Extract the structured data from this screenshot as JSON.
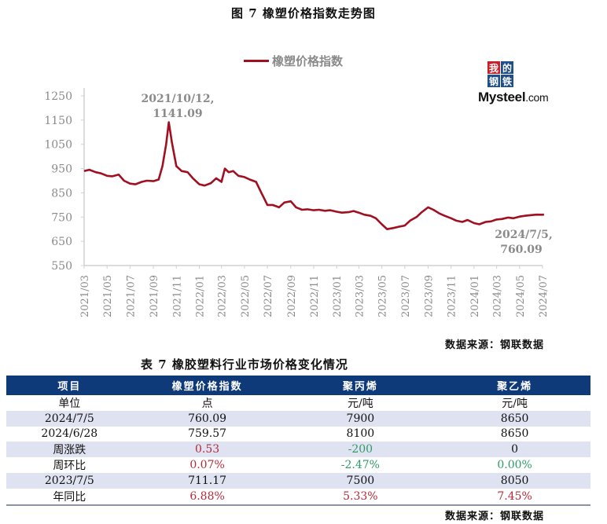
{
  "figure": {
    "title": "图 7   橡塑价格指数走势图",
    "legend_label": "橡塑价格指数",
    "logo": {
      "cells": [
        "我",
        "的",
        "钢",
        "铁"
      ],
      "text_big": "Mysteel",
      "text_small": ".com"
    },
    "source": "数据来源：钢联数据"
  },
  "chart_data": {
    "type": "line",
    "title": "橡塑价格指数走势图",
    "xlabel": "",
    "ylabel": "",
    "ylim": [
      550,
      1250
    ],
    "yticks": [
      1250,
      1150,
      1050,
      950,
      850,
      750,
      650,
      550
    ],
    "xticks": [
      "2021/03",
      "2021/05",
      "2021/07",
      "2021/09",
      "2021/11",
      "2022/01",
      "2022/03",
      "2022/05",
      "2022/07",
      "2022/09",
      "2022/11",
      "2023/01",
      "2023/03",
      "2023/05",
      "2023/07",
      "2023/09",
      "2023/11",
      "2024/01",
      "2024/03",
      "2024/05",
      "2024/07"
    ],
    "grid": false,
    "legend_position": "top",
    "series": [
      {
        "name": "橡塑价格指数",
        "color": "#a01020",
        "x": [
          "2021/03/01",
          "2021/03/15",
          "2021/04/01",
          "2021/04/15",
          "2021/05/01",
          "2021/05/15",
          "2021/06/01",
          "2021/06/15",
          "2021/07/01",
          "2021/07/15",
          "2021/08/01",
          "2021/08/15",
          "2021/09/01",
          "2021/09/15",
          "2021/09/25",
          "2021/10/05",
          "2021/10/12",
          "2021/10/20",
          "2021/11/01",
          "2021/11/15",
          "2021/12/01",
          "2021/12/15",
          "2022/01/01",
          "2022/01/15",
          "2022/02/01",
          "2022/02/15",
          "2022/03/01",
          "2022/03/10",
          "2022/03/20",
          "2022/04/01",
          "2022/04/15",
          "2022/05/01",
          "2022/05/15",
          "2022/06/01",
          "2022/06/15",
          "2022/07/01",
          "2022/07/15",
          "2022/08/01",
          "2022/08/15",
          "2022/09/01",
          "2022/09/15",
          "2022/10/01",
          "2022/10/15",
          "2022/11/01",
          "2022/11/15",
          "2022/12/01",
          "2022/12/15",
          "2023/01/01",
          "2023/01/15",
          "2023/02/01",
          "2023/02/15",
          "2023/03/01",
          "2023/03/15",
          "2023/04/01",
          "2023/04/15",
          "2023/05/01",
          "2023/05/15",
          "2023/06/01",
          "2023/06/15",
          "2023/07/01",
          "2023/07/15",
          "2023/08/01",
          "2023/08/15",
          "2023/09/01",
          "2023/09/15",
          "2023/10/01",
          "2023/10/15",
          "2023/11/01",
          "2023/11/15",
          "2023/12/01",
          "2023/12/15",
          "2024/01/01",
          "2024/01/15",
          "2024/02/01",
          "2024/02/15",
          "2024/03/01",
          "2024/03/15",
          "2024/04/01",
          "2024/04/15",
          "2024/05/01",
          "2024/05/15",
          "2024/06/01",
          "2024/06/15",
          "2024/06/28",
          "2024/07/05"
        ],
        "values": [
          940,
          945,
          935,
          930,
          920,
          918,
          925,
          900,
          888,
          885,
          895,
          900,
          898,
          905,
          960,
          1050,
          1141.09,
          1060,
          960,
          940,
          935,
          910,
          885,
          880,
          890,
          910,
          895,
          950,
          935,
          940,
          920,
          915,
          905,
          895,
          850,
          800,
          800,
          790,
          810,
          815,
          790,
          780,
          782,
          778,
          780,
          776,
          778,
          772,
          768,
          770,
          775,
          768,
          760,
          755,
          745,
          720,
          700,
          705,
          710,
          715,
          735,
          750,
          770,
          790,
          780,
          765,
          755,
          745,
          735,
          730,
          738,
          725,
          720,
          730,
          732,
          740,
          742,
          748,
          745,
          752,
          755,
          758,
          760,
          759.57,
          760.09
        ]
      }
    ],
    "annotations": [
      {
        "text": "2021/10/12,\n1141.09",
        "x": "2021/10/12",
        "y": 1141.09
      },
      {
        "text": "2024/7/5,\n760.09",
        "x": "2024/07/05",
        "y": 760.09
      }
    ]
  },
  "annotations": {
    "peak_line1": "2021/10/12,",
    "peak_line2": "1141.09",
    "last_line1": "2024/7/5,",
    "last_line2": "760.09"
  },
  "table": {
    "title": "表 7 橡胶塑料行业市场价格变化情况",
    "headers": [
      "项目",
      "橡塑价格指数",
      "聚丙烯",
      "聚乙烯"
    ],
    "rows": [
      [
        "单位",
        "点",
        "元/吨",
        "元/吨"
      ],
      [
        "2024/7/5",
        "760.09",
        "7900",
        "8650"
      ],
      [
        "2024/6/28",
        "759.57",
        "8100",
        "8650"
      ],
      [
        "周涨跌",
        "0.53",
        "-200",
        "0"
      ],
      [
        "周环比",
        "0.07%",
        "-2.47%",
        "0.00%"
      ],
      [
        "2023/7/5",
        "711.17",
        "7500",
        "8050"
      ],
      [
        "年同比",
        "6.88%",
        "5.33%",
        "7.45%"
      ]
    ],
    "source": "数据来源：钢联数据"
  },
  "colors": {
    "line": "#a01020",
    "header_bg": "#0f3a7a",
    "row_alt": "#dfe3f1",
    "positive": "#b22a3a",
    "negative": "#2e9a66"
  }
}
